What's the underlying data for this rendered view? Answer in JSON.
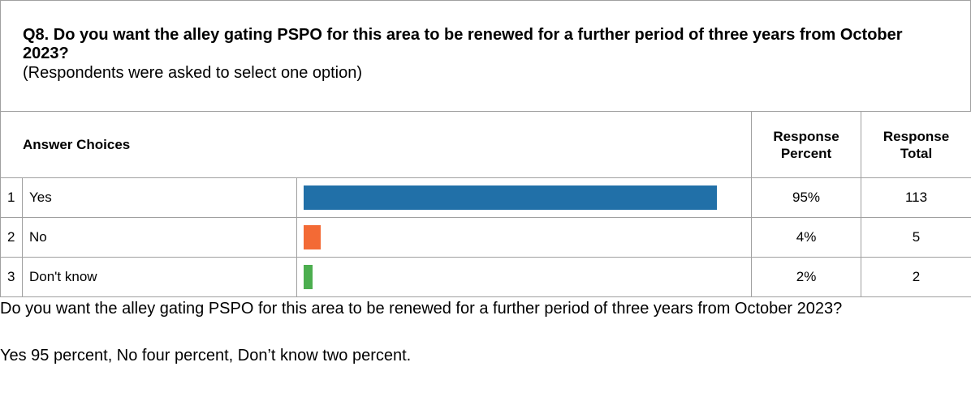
{
  "header": {
    "title": "Q8. Do you want the alley gating PSPO for this area to be renewed for a further period of three years from October 2023?",
    "subtitle": "(Respondents were asked to select one option)"
  },
  "table": {
    "columns": [
      "Answer Choices",
      "Response Percent",
      "Response Total"
    ],
    "rows": [
      {
        "number": 1,
        "choice": "Yes",
        "percent": 95,
        "percent_label": "95%",
        "total": 113,
        "color": "#2170a8"
      },
      {
        "number": 2,
        "choice": "No",
        "percent": 4,
        "percent_label": "4%",
        "total": 5,
        "color": "#f36a35"
      },
      {
        "number": 3,
        "choice": "Don't know",
        "percent": 2,
        "percent_label": "2%",
        "total": 2,
        "color": "#4cae4f"
      }
    ]
  },
  "description": [
    "Do you want the alley gating PSPO for this area to be renewed for a further period of three years from October 2023?",
    "Yes 95 percent, No four percent, Don’t know two percent."
  ]
}
